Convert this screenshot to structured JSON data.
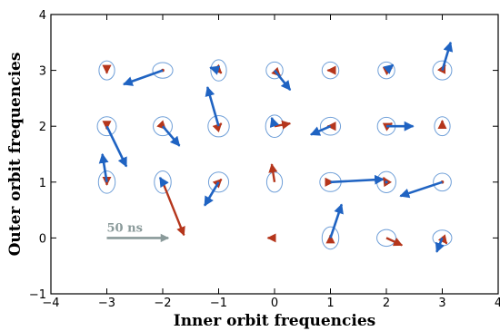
{
  "chart_data": {
    "type": "scatter",
    "xlabel": "Inner orbit frequencies",
    "ylabel": "Outer orbit frequencies",
    "xlim": [
      -4,
      4
    ],
    "ylim": [
      -1,
      4
    ],
    "xticks": [
      -4,
      -3,
      -2,
      -1,
      0,
      1,
      2,
      3,
      4
    ],
    "yticks": [
      -1,
      0,
      1,
      2,
      3,
      4
    ],
    "grid": false,
    "scale_bar": {
      "label": "50 ns",
      "x": -3,
      "y": 0,
      "dx": 1.1,
      "dy": 0,
      "color": "#8a9a9a"
    },
    "colors": {
      "ellipse": "#6f9fd8",
      "blue_arrow": "#1f63c2",
      "red_arrow": "#b5361c"
    },
    "points": [
      {
        "x": -3,
        "y": 3,
        "ew": 0.28,
        "eh": 0.34,
        "red": [
          0,
          -0.05
        ],
        "blue": null
      },
      {
        "x": -2,
        "y": 3,
        "ew": 0.36,
        "eh": 0.28,
        "red": [
          0,
          0
        ],
        "blue": [
          -0.7,
          -0.25
        ]
      },
      {
        "x": -1,
        "y": 3,
        "ew": 0.28,
        "eh": 0.38,
        "red": [
          0.05,
          -0.05
        ],
        "blue": [
          -0.15,
          0.05
        ]
      },
      {
        "x": 0,
        "y": 3,
        "ew": 0.3,
        "eh": 0.3,
        "red": [
          0.1,
          -0.1
        ],
        "blue": [
          0.28,
          -0.35
        ]
      },
      {
        "x": 1,
        "y": 3,
        "ew": 0.3,
        "eh": 0.3,
        "red": [
          -0.05,
          0
        ],
        "blue": null
      },
      {
        "x": 2,
        "y": 3,
        "ew": 0.3,
        "eh": 0.3,
        "red": [
          0.1,
          0.05
        ],
        "blue": [
          0.12,
          0.1
        ]
      },
      {
        "x": 3,
        "y": 3,
        "ew": 0.34,
        "eh": 0.34,
        "red": [
          0.05,
          0.1
        ],
        "blue": [
          0.15,
          0.5
        ]
      },
      {
        "x": -3,
        "y": 2,
        "ew": 0.34,
        "eh": 0.34,
        "red": [
          0,
          -0.05
        ],
        "blue": [
          0.35,
          -0.72
        ]
      },
      {
        "x": -2,
        "y": 2,
        "ew": 0.34,
        "eh": 0.34,
        "red": [
          0.05,
          -0.05
        ],
        "blue": [
          0.3,
          -0.35
        ]
      },
      {
        "x": -1,
        "y": 2,
        "ew": 0.38,
        "eh": 0.38,
        "red": [
          0.05,
          0.05
        ],
        "blue": [
          -0.2,
          0.7
        ]
      },
      {
        "x": 0,
        "y": 2,
        "ew": 0.32,
        "eh": 0.4,
        "red": [
          0.28,
          0.05
        ],
        "blue": [
          -0.05,
          0.15
        ]
      },
      {
        "x": 1,
        "y": 2,
        "ew": 0.36,
        "eh": 0.32,
        "red": [
          -0.05,
          0
        ],
        "blue": [
          -0.35,
          -0.15
        ]
      },
      {
        "x": 2,
        "y": 2,
        "ew": 0.32,
        "eh": 0.32,
        "red": [
          0.1,
          0.05
        ],
        "blue": [
          0.48,
          0
        ]
      },
      {
        "x": 3,
        "y": 2,
        "ew": 0.28,
        "eh": 0.34,
        "red": [
          0,
          0.1
        ],
        "blue": null
      },
      {
        "x": -3,
        "y": 1,
        "ew": 0.3,
        "eh": 0.4,
        "red": [
          0,
          -0.05
        ],
        "blue": [
          -0.08,
          0.5
        ]
      },
      {
        "x": -2,
        "y": 1,
        "ew": 0.3,
        "eh": 0.4,
        "red": [
          0.38,
          -0.95
        ],
        "blue": [
          -0.05,
          0.08
        ]
      },
      {
        "x": -1,
        "y": 1,
        "ew": 0.36,
        "eh": 0.36,
        "red": [
          0.05,
          0.05
        ],
        "blue": [
          -0.25,
          -0.42
        ]
      },
      {
        "x": 0,
        "y": 1,
        "ew": 0.28,
        "eh": 0.36,
        "red": [
          -0.05,
          0.32
        ],
        "blue": null
      },
      {
        "x": 1,
        "y": 1,
        "ew": 0.38,
        "eh": 0.34,
        "red": [
          0.05,
          0
        ],
        "blue": [
          0.95,
          0.05
        ]
      },
      {
        "x": 2,
        "y": 1,
        "ew": 0.34,
        "eh": 0.38,
        "red": [
          -0.05,
          0.08
        ],
        "blue": [
          0,
          0
        ]
      },
      {
        "x": 3,
        "y": 1,
        "ew": 0.32,
        "eh": 0.32,
        "red": [
          0,
          0
        ],
        "blue": [
          -0.75,
          -0.25
        ]
      },
      {
        "x": -3,
        "y": 0,
        "ew": 0,
        "eh": 0,
        "red": null,
        "blue": null
      },
      {
        "x": -2,
        "y": 0,
        "ew": 0,
        "eh": 0,
        "red": null,
        "blue": null
      },
      {
        "x": -1,
        "y": 0,
        "ew": 0,
        "eh": 0,
        "red": null,
        "blue": null
      },
      {
        "x": 0,
        "y": 0,
        "ew": 0,
        "eh": 0,
        "red": [
          -0.12,
          0
        ],
        "blue": null
      },
      {
        "x": 1,
        "y": 0,
        "ew": 0.3,
        "eh": 0.4,
        "red": [
          0,
          0.05
        ],
        "blue": [
          0.2,
          0.6
        ]
      },
      {
        "x": 2,
        "y": 0,
        "ew": 0.34,
        "eh": 0.3,
        "red": [
          0.28,
          -0.13
        ],
        "blue": null
      },
      {
        "x": 3,
        "y": 0,
        "ew": 0.34,
        "eh": 0.28,
        "red": [
          0.08,
          -0.1
        ],
        "blue": [
          -0.1,
          -0.25
        ]
      }
    ]
  }
}
